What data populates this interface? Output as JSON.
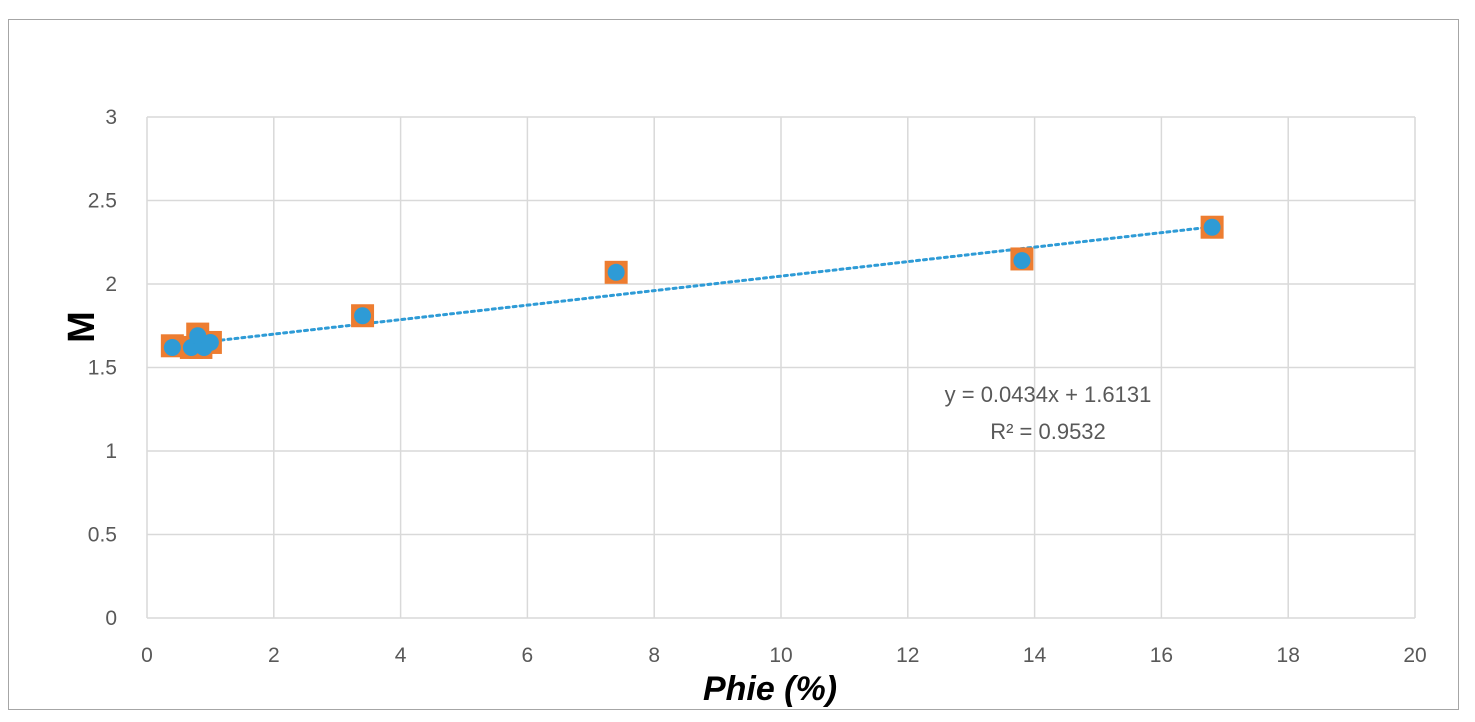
{
  "chart_data": {
    "type": "scatter",
    "title": "",
    "xlabel": "Phie (%)",
    "ylabel": "M",
    "xlim": [
      0,
      20
    ],
    "ylim": [
      0,
      3
    ],
    "x_ticks": [
      "0",
      "2",
      "4",
      "6",
      "8",
      "10",
      "12",
      "14",
      "16",
      "18",
      "20"
    ],
    "y_ticks": [
      "0",
      "0.5",
      "1",
      "1.5",
      "2",
      "2.5",
      "3"
    ],
    "grid": true,
    "legend": "none",
    "series": [
      {
        "marker": "square",
        "color": "#ed7d31",
        "points": [
          {
            "x": 0.4,
            "y": 1.63
          },
          {
            "x": 0.7,
            "y": 1.62
          },
          {
            "x": 0.8,
            "y": 1.7
          },
          {
            "x": 0.85,
            "y": 1.62
          },
          {
            "x": 1.0,
            "y": 1.65
          },
          {
            "x": 3.4,
            "y": 1.81
          },
          {
            "x": 7.4,
            "y": 2.07
          },
          {
            "x": 13.8,
            "y": 2.15
          },
          {
            "x": 16.8,
            "y": 2.34
          }
        ]
      },
      {
        "marker": "circle",
        "color": "#2e9bd6",
        "points": [
          {
            "x": 0.4,
            "y": 1.62
          },
          {
            "x": 0.7,
            "y": 1.62
          },
          {
            "x": 0.8,
            "y": 1.69
          },
          {
            "x": 0.9,
            "y": 1.62
          },
          {
            "x": 1.0,
            "y": 1.65
          },
          {
            "x": 3.4,
            "y": 1.81
          },
          {
            "x": 7.4,
            "y": 2.07
          },
          {
            "x": 13.8,
            "y": 2.14
          },
          {
            "x": 16.8,
            "y": 2.34
          }
        ]
      }
    ],
    "trendline": {
      "slope": 0.0434,
      "intercept": 1.6131,
      "x_range": [
        0.4,
        16.8
      ],
      "style": "dotted",
      "color": "#2e9bd6",
      "equation": "y = 0.0434x + 1.6131",
      "r_squared": "R² = 0.9532"
    },
    "colors": {
      "grid": "#d9d9d9",
      "tick_text": "#595959"
    }
  }
}
